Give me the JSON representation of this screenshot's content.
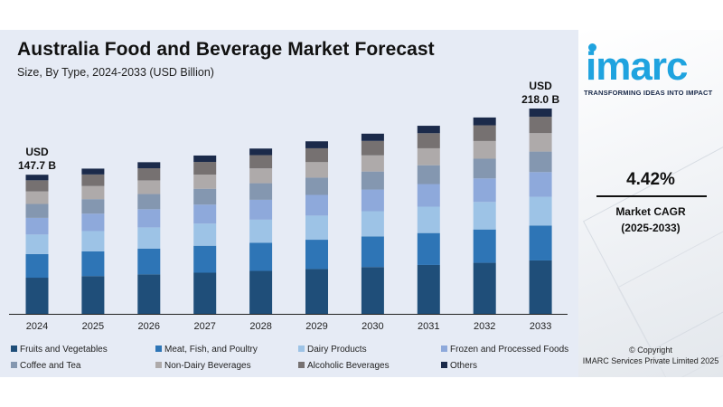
{
  "header": {
    "title": "Australia Food and Beverage Market Forecast",
    "subtitle": "Size, By Type, 2024-2033 (USD Billion)"
  },
  "branding": {
    "logo_text": "imarc",
    "tagline": "TRANSFORMING IDEAS INTO IMPACT",
    "brand_color": "#1fa3df"
  },
  "cagr": {
    "value": "4.42%",
    "label": "Market CAGR",
    "period": "(2025-2033)"
  },
  "copyright": {
    "line1": "© Copyright",
    "line2": "IMARC Services Private Limited 2025"
  },
  "chart_data": {
    "type": "bar",
    "stacked": true,
    "categories": [
      "2024",
      "2025",
      "2026",
      "2027",
      "2028",
      "2029",
      "2030",
      "2031",
      "2032",
      "2033"
    ],
    "totals": [
      147.7,
      154.2,
      161.0,
      168.1,
      175.5,
      183.2,
      191.3,
      199.7,
      208.5,
      218.0
    ],
    "annotations": [
      {
        "category": "2024",
        "lines": [
          "USD",
          "147.7 B"
        ]
      },
      {
        "category": "2033",
        "lines": [
          "USD",
          "218.0 B"
        ]
      }
    ],
    "ylim": [
      0,
      230
    ],
    "grid": false,
    "legend_position": "bottom",
    "series": [
      {
        "name": "Fruits and Vegetables",
        "color": "#1f4e79",
        "values": [
          38.4,
          40.1,
          41.9,
          43.7,
          45.6,
          47.6,
          49.7,
          51.9,
          54.2,
          56.7
        ]
      },
      {
        "name": "Meat, Fish, and Poultry",
        "color": "#2e75b6",
        "values": [
          25.1,
          26.2,
          27.4,
          28.6,
          29.8,
          31.1,
          32.5,
          33.9,
          35.4,
          37.1
        ]
      },
      {
        "name": "Dairy Products",
        "color": "#9dc3e6",
        "values": [
          20.7,
          21.6,
          22.5,
          23.5,
          24.6,
          25.6,
          26.8,
          28.0,
          29.2,
          30.5
        ]
      },
      {
        "name": "Frozen and Processed Foods",
        "color": "#8ea9db",
        "values": [
          17.7,
          18.5,
          19.3,
          20.2,
          21.1,
          22.0,
          23.0,
          24.0,
          25.0,
          26.2
        ]
      },
      {
        "name": "Coffee and Tea",
        "color": "#8497b0",
        "values": [
          14.8,
          15.4,
          16.1,
          16.8,
          17.6,
          18.3,
          19.1,
          20.0,
          20.9,
          21.8
        ]
      },
      {
        "name": "Non-Dairy Beverages",
        "color": "#aeaaaa",
        "values": [
          13.3,
          13.9,
          14.5,
          15.1,
          15.8,
          16.5,
          17.2,
          18.0,
          18.8,
          19.6
        ]
      },
      {
        "name": "Alcoholic Beverages",
        "color": "#767171",
        "values": [
          11.8,
          12.3,
          12.9,
          13.4,
          14.0,
          14.7,
          15.3,
          16.0,
          16.7,
          17.4
        ]
      },
      {
        "name": "Others",
        "color": "#1b2a4a",
        "values": [
          5.9,
          6.2,
          6.4,
          6.8,
          7.0,
          7.4,
          7.7,
          7.9,
          8.3,
          8.7
        ]
      }
    ]
  }
}
